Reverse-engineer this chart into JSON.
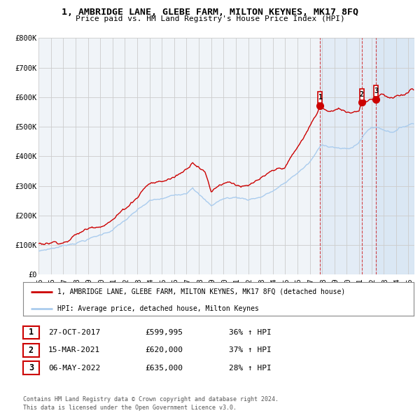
{
  "title": "1, AMBRIDGE LANE, GLEBE FARM, MILTON KEYNES, MK17 8FQ",
  "subtitle": "Price paid vs. HM Land Registry's House Price Index (HPI)",
  "ylim": [
    0,
    800000
  ],
  "yticks": [
    0,
    100000,
    200000,
    300000,
    400000,
    500000,
    600000,
    700000,
    800000
  ],
  "ytick_labels": [
    "£0",
    "£100K",
    "£200K",
    "£300K",
    "£400K",
    "£500K",
    "£600K",
    "£700K",
    "£800K"
  ],
  "xlim_start": 1995.0,
  "xlim_end": 2025.5,
  "xticks": [
    1995,
    1996,
    1997,
    1998,
    1999,
    2000,
    2001,
    2002,
    2003,
    2004,
    2005,
    2006,
    2007,
    2008,
    2009,
    2010,
    2011,
    2012,
    2013,
    2014,
    2015,
    2016,
    2017,
    2018,
    2019,
    2020,
    2021,
    2022,
    2023,
    2024,
    2025
  ],
  "red_color": "#cc0000",
  "blue_color": "#aaccee",
  "shade_color": "#ddeeff",
  "background_color": "#f0f4f8",
  "grid_color": "#cccccc",
  "legend_label_red": "1, AMBRIDGE LANE, GLEBE FARM, MILTON KEYNES, MK17 8FQ (detached house)",
  "legend_label_blue": "HPI: Average price, detached house, Milton Keynes",
  "sales": [
    {
      "num": 1,
      "date": "27-OCT-2017",
      "price": "£599,995",
      "hpi": "36% ↑ HPI",
      "year": 2017.83
    },
    {
      "num": 2,
      "date": "15-MAR-2021",
      "price": "£620,000",
      "hpi": "37% ↑ HPI",
      "year": 2021.21
    },
    {
      "num": 3,
      "date": "06-MAY-2022",
      "price": "£635,000",
      "hpi": "28% ↑ HPI",
      "year": 2022.38
    }
  ],
  "sale_values": [
    599995,
    620000,
    635000
  ],
  "footer": "Contains HM Land Registry data © Crown copyright and database right 2024.\nThis data is licensed under the Open Government Licence v3.0."
}
